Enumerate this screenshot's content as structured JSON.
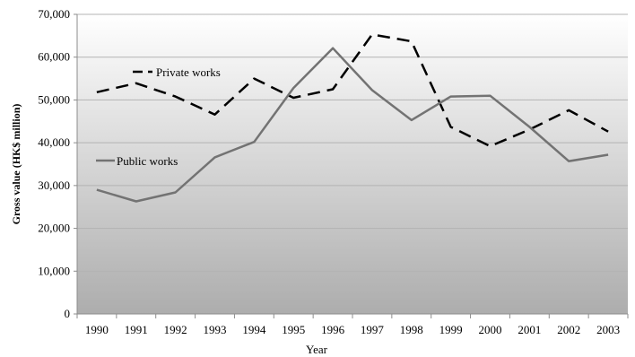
{
  "chart_data": {
    "type": "line",
    "xlabel": "Year",
    "ylabel": "Gross value (HK$ million)",
    "ylim": [
      0,
      70000
    ],
    "yticks": [
      "0",
      "10,000",
      "20,000",
      "30,000",
      "40,000",
      "50,000",
      "60,000",
      "70,000"
    ],
    "categories": [
      "1990",
      "1991",
      "1992",
      "1993",
      "1994",
      "1995",
      "1996",
      "1997",
      "1998",
      "1999",
      "2000",
      "2001",
      "2002",
      "2003"
    ],
    "grid": true,
    "series": [
      {
        "name": "Private works",
        "style": "dashed",
        "color": "#000000",
        "values": [
          51800,
          53900,
          50800,
          46600,
          55000,
          50500,
          52500,
          65300,
          63700,
          43700,
          39200,
          43100,
          47600,
          42600
        ]
      },
      {
        "name": "Public works",
        "style": "solid",
        "color": "#737373",
        "values": [
          29000,
          26300,
          28400,
          36600,
          40200,
          52800,
          62100,
          52300,
          45300,
          50800,
          51000,
          43700,
          35700,
          37200
        ]
      }
    ]
  }
}
